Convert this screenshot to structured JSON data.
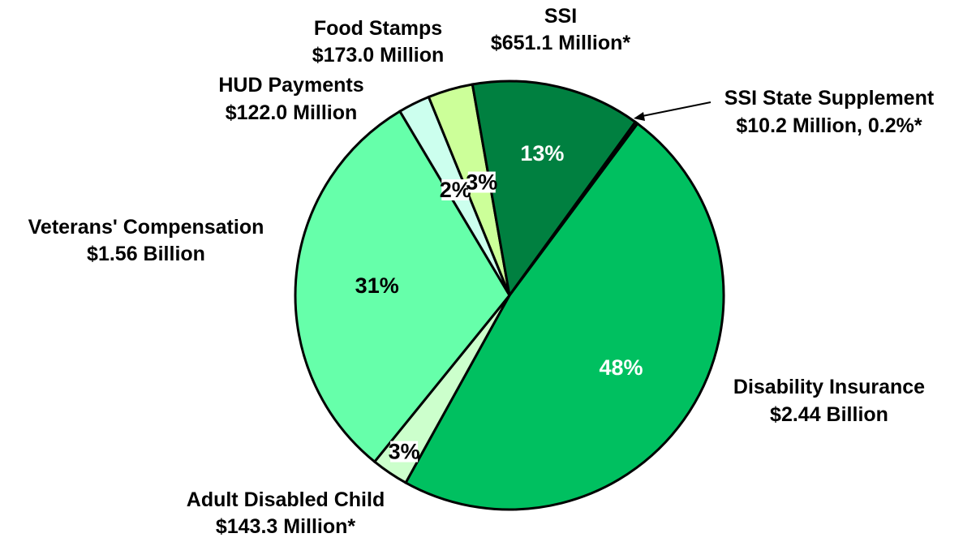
{
  "chart_data": {
    "type": "pie",
    "title": "",
    "slices": [
      {
        "label": "Disability Insurance",
        "amount": "$2.44 Billion",
        "percent": "48%",
        "value": 48.0,
        "color": "#00C060",
        "pct_color": "#FFFFFF"
      },
      {
        "label": "Adult Disabled Child",
        "amount": "$143.3 Million*",
        "percent": "3%",
        "value": 2.8,
        "color": "#CCFFCC",
        "pct_color": "#000000"
      },
      {
        "label": "Veterans' Compensation",
        "amount": "$1.56 Billion",
        "percent": "31%",
        "value": 30.7,
        "color": "#66FFAA",
        "pct_color": "#000000"
      },
      {
        "label": "HUD Payments",
        "amount": "$122.0 Million",
        "percent": "2%",
        "value": 2.4,
        "color": "#CCFFEE",
        "pct_color": "#000000"
      },
      {
        "label": "Food Stamps",
        "amount": "$173.0 Million",
        "percent": "3%",
        "value": 3.4,
        "color": "#CCFF99",
        "pct_color": "#000000"
      },
      {
        "label": "SSI",
        "amount": "$651.1 Million*",
        "percent": "13%",
        "value": 12.8,
        "color": "#008040",
        "pct_color": "#FFFFFF"
      },
      {
        "label": "SSI State Supplement",
        "amount": "$10.2 Million, 0.2%*",
        "percent": "",
        "value": 0.2,
        "color": "#004020",
        "pct_color": "#000000"
      }
    ]
  }
}
